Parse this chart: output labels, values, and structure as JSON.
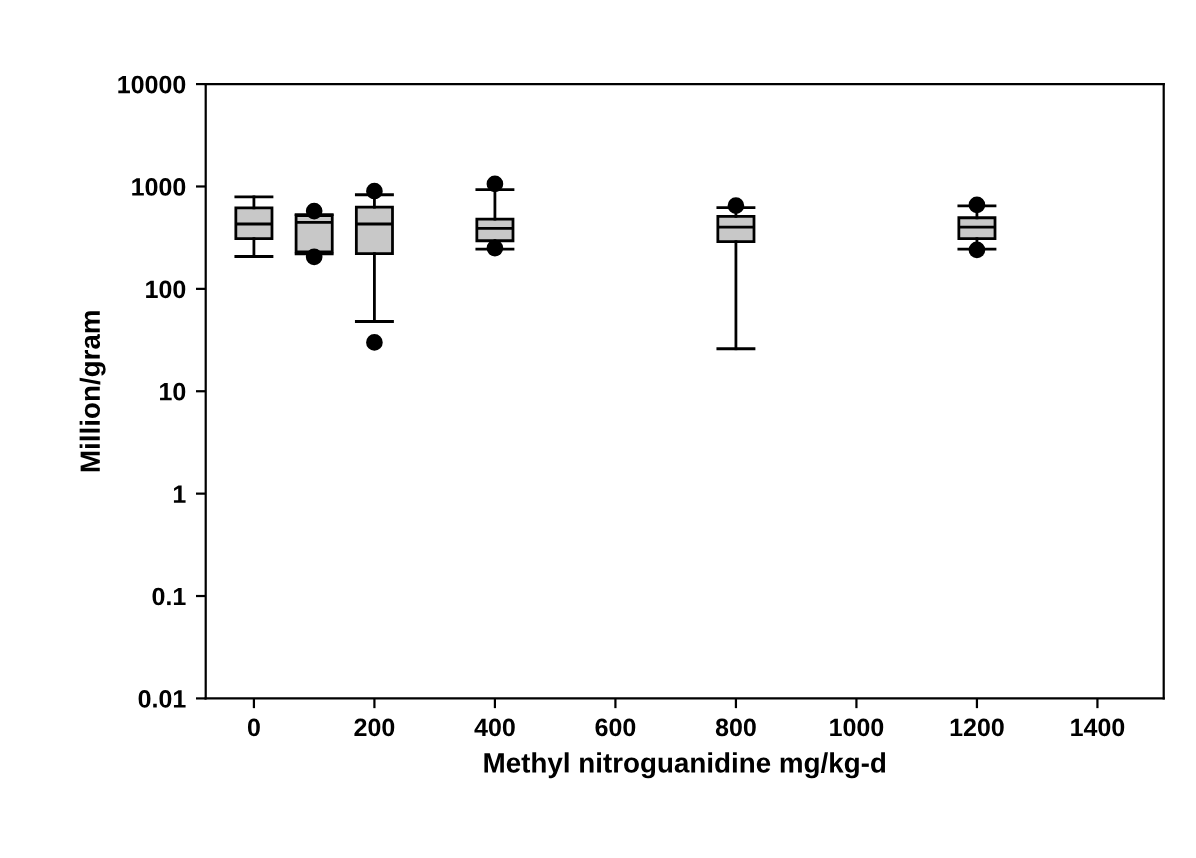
{
  "chart_data": {
    "type": "box",
    "xlabel": "Methyl nitroguanidine mg/kg-d",
    "ylabel": "Million/gram",
    "log": "y",
    "x": [
      0,
      100,
      200,
      400,
      800,
      1200
    ],
    "boxes": [
      {
        "low": 207,
        "q1": 310,
        "median": 430,
        "q3": 617,
        "high": 790
      },
      {
        "low": 220,
        "q1": 230,
        "median": 446,
        "q3": 520,
        "high": 530,
        "outliers": [
          575,
          205
        ]
      },
      {
        "low": 48,
        "q1": 221,
        "median": 430,
        "q3": 630,
        "high": 830,
        "outliers": [
          900,
          30
        ]
      },
      {
        "low": 245,
        "q1": 295,
        "median": 390,
        "q3": 480,
        "high": 930,
        "outliers": [
          1060,
          250
        ]
      },
      {
        "low": 26,
        "q1": 290,
        "median": 400,
        "q3": 510,
        "high": 620,
        "outliers": [
          650
        ]
      },
      {
        "low": 245,
        "q1": 310,
        "median": 400,
        "q3": 495,
        "high": 645,
        "outliers": [
          660,
          240
        ]
      }
    ],
    "color": "#c8c8c8",
    "marker": "circle",
    "grid": false,
    "xlim": [
      -80,
      1510
    ],
    "xticks": [
      0,
      200,
      400,
      600,
      800,
      1000,
      1200,
      1400
    ],
    "ylim": [
      0.01,
      10000
    ],
    "yticks": [
      0.01,
      0.1,
      1,
      10,
      100,
      1000,
      10000
    ]
  }
}
